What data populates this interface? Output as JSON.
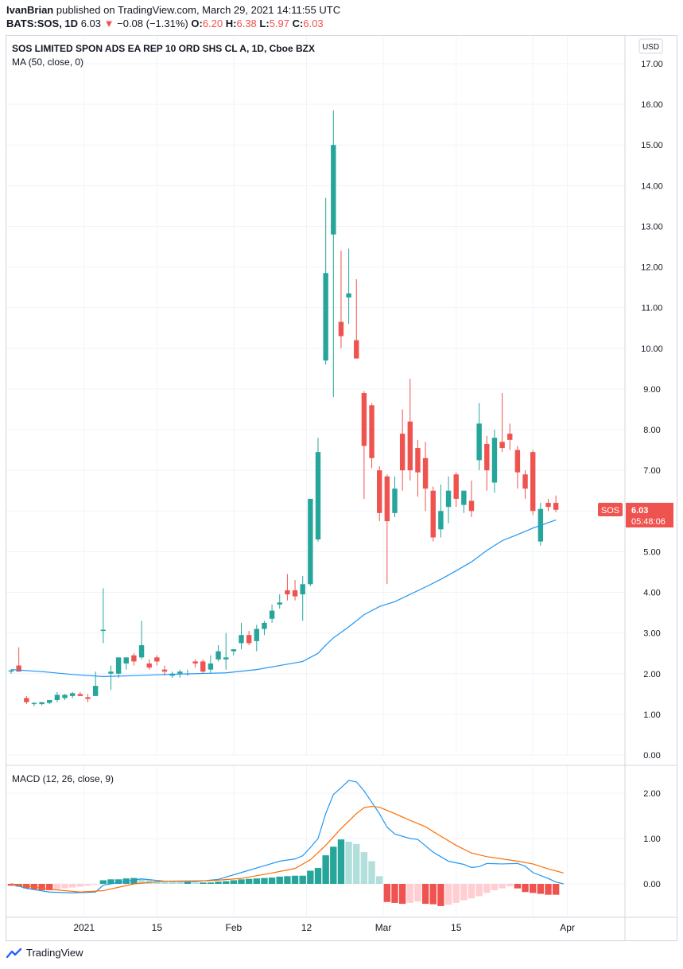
{
  "header": {
    "publisher_line_user": "IvanBrian",
    "publisher_line_rest": " published on TradingView.com, March 29, 2021 14:11:55 UTC",
    "symbol": "BATS:SOS, 1D",
    "last": "6.03",
    "change_arrow": "▼",
    "change": "−0.08 (−1.31%)",
    "o_label": "O:",
    "o_val": "6.20",
    "h_label": "H:",
    "h_val": "6.38",
    "l_label": "L:",
    "l_val": "5.97",
    "c_label": "C:",
    "c_val": "6.03"
  },
  "legend": {
    "title": "SOS LIMITED SPON ADS EA REP 10 ORD SHS CL A, 1D, Cboe BZX",
    "ma": "MA (50, close, 0)",
    "macd": "MACD (12, 26, close, 9)"
  },
  "currency": "USD",
  "price_tag": {
    "symbol": "SOS",
    "price": "6.03",
    "countdown": "05:48:06"
  },
  "footer": {
    "brand": "TradingView"
  },
  "colors": {
    "up": "#26a69a",
    "down": "#ef5350",
    "ma": "#2196f3",
    "macd": "#2196f3",
    "signal": "#ff6d00",
    "hist_up_strong": "#26a69a",
    "hist_up_weak": "#b2dfdb",
    "hist_down_strong": "#ef5350",
    "hist_down_weak": "#ffcdd2"
  },
  "chart_data": [
    {
      "type": "candlestick",
      "title": "SOS LIMITED SPON ADS EA REP 10 ORD SHS CL A, 1D, Cboe BZX",
      "ylim": [
        0,
        17
      ],
      "yticks": [
        "0.00",
        "1.00",
        "2.00",
        "3.00",
        "4.00",
        "5.00",
        "6.00",
        "7.00",
        "8.00",
        "9.00",
        "10.00",
        "11.00",
        "12.00",
        "13.00",
        "14.00",
        "15.00",
        "16.00",
        "17.00"
      ],
      "xticks": [
        "2021",
        "15",
        "Feb",
        "12",
        "Mar",
        "15",
        "Apr"
      ],
      "candles": [
        [
          2.05,
          2.1,
          2.0,
          2.08
        ],
        [
          2.2,
          2.65,
          2.05,
          2.05
        ],
        [
          1.4,
          1.45,
          1.25,
          1.3
        ],
        [
          1.25,
          1.3,
          1.2,
          1.28
        ],
        [
          1.25,
          1.3,
          1.22,
          1.3
        ],
        [
          1.28,
          1.35,
          1.25,
          1.35
        ],
        [
          1.35,
          1.55,
          1.3,
          1.48
        ],
        [
          1.4,
          1.5,
          1.35,
          1.48
        ],
        [
          1.45,
          1.55,
          1.4,
          1.52
        ],
        [
          1.5,
          1.55,
          1.45,
          1.45
        ],
        [
          1.42,
          1.5,
          1.3,
          1.38
        ],
        [
          1.45,
          2.05,
          1.45,
          1.7
        ],
        [
          3.05,
          4.1,
          2.75,
          3.08
        ],
        [
          2.0,
          2.2,
          1.6,
          2.05
        ],
        [
          2.0,
          2.35,
          1.9,
          2.4
        ],
        [
          2.25,
          2.4,
          2.1,
          2.4
        ],
        [
          2.45,
          2.5,
          2.2,
          2.3
        ],
        [
          2.4,
          3.3,
          2.35,
          2.7
        ],
        [
          2.25,
          2.35,
          2.1,
          2.15
        ],
        [
          2.4,
          2.45,
          2.2,
          2.3
        ],
        [
          2.1,
          2.2,
          1.95,
          2.05
        ],
        [
          1.95,
          2.05,
          1.9,
          2.0
        ],
        [
          2.0,
          2.1,
          1.9,
          2.05
        ],
        [
          2.0,
          2.1,
          1.95,
          2.0
        ],
        [
          2.3,
          2.35,
          2.15,
          2.25
        ],
        [
          2.3,
          2.35,
          2.0,
          2.05
        ],
        [
          2.1,
          2.45,
          2.0,
          2.25
        ],
        [
          2.35,
          2.7,
          2.3,
          2.55
        ],
        [
          2.35,
          3.0,
          2.1,
          2.4
        ],
        [
          2.55,
          2.6,
          2.45,
          2.6
        ],
        [
          2.75,
          3.25,
          2.6,
          2.95
        ],
        [
          2.95,
          3.05,
          2.7,
          2.75
        ],
        [
          2.8,
          3.2,
          2.55,
          3.1
        ],
        [
          3.1,
          3.3,
          2.95,
          3.25
        ],
        [
          3.35,
          3.7,
          3.25,
          3.55
        ],
        [
          3.7,
          3.95,
          3.6,
          3.75
        ],
        [
          4.05,
          4.45,
          3.8,
          3.95
        ],
        [
          4.05,
          4.3,
          3.8,
          3.9
        ],
        [
          3.95,
          4.4,
          3.3,
          4.2
        ],
        [
          4.2,
          6.3,
          4.15,
          6.3
        ],
        [
          5.3,
          7.8,
          5.25,
          7.45
        ],
        [
          9.7,
          13.7,
          9.6,
          11.85
        ],
        [
          12.8,
          15.85,
          8.8,
          15.0
        ],
        [
          10.65,
          12.4,
          10.0,
          10.3
        ],
        [
          11.25,
          12.45,
          10.6,
          11.35
        ],
        [
          10.2,
          11.7,
          9.75,
          9.75
        ],
        [
          8.9,
          8.95,
          6.3,
          7.6
        ],
        [
          8.6,
          8.65,
          7.05,
          7.3
        ],
        [
          7.0,
          7.1,
          5.75,
          5.95
        ],
        [
          6.85,
          6.9,
          4.2,
          5.75
        ],
        [
          5.95,
          6.85,
          5.85,
          6.55
        ],
        [
          7.9,
          8.5,
          6.5,
          7.0
        ],
        [
          8.2,
          9.25,
          6.75,
          7.0
        ],
        [
          7.55,
          7.75,
          6.35,
          6.95
        ],
        [
          7.3,
          7.7,
          6.0,
          6.55
        ],
        [
          6.5,
          6.6,
          5.25,
          5.35
        ],
        [
          5.55,
          6.65,
          5.35,
          6.0
        ],
        [
          6.1,
          6.85,
          5.7,
          6.5
        ],
        [
          6.9,
          6.95,
          6.1,
          6.3
        ],
        [
          6.15,
          6.4,
          5.95,
          6.5
        ],
        [
          6.25,
          6.75,
          5.85,
          6.0
        ],
        [
          7.25,
          8.65,
          7.0,
          8.15
        ],
        [
          7.65,
          7.85,
          6.5,
          7.0
        ],
        [
          6.7,
          8.0,
          6.45,
          7.8
        ],
        [
          7.7,
          8.9,
          7.45,
          7.55
        ],
        [
          7.9,
          8.15,
          7.5,
          7.75
        ],
        [
          7.5,
          7.6,
          6.55,
          6.95
        ],
        [
          6.9,
          7.0,
          6.3,
          6.55
        ],
        [
          7.45,
          7.5,
          5.9,
          6.0
        ],
        [
          5.25,
          6.2,
          5.15,
          6.05
        ],
        [
          6.2,
          6.3,
          6.0,
          6.1
        ],
        [
          6.2,
          6.38,
          5.97,
          6.03
        ]
      ],
      "ma50": [
        [
          0,
          2.1
        ],
        [
          4,
          2.05
        ],
        [
          8,
          1.98
        ],
        [
          12,
          1.93
        ],
        [
          16,
          1.95
        ],
        [
          20,
          1.98
        ],
        [
          24,
          2.0
        ],
        [
          28,
          2.02
        ],
        [
          32,
          2.1
        ],
        [
          35,
          2.2
        ],
        [
          38,
          2.3
        ],
        [
          39,
          2.4
        ],
        [
          40,
          2.5
        ],
        [
          41,
          2.7
        ],
        [
          42,
          2.88
        ],
        [
          44,
          3.15
        ],
        [
          46,
          3.45
        ],
        [
          48,
          3.65
        ],
        [
          50,
          3.77
        ],
        [
          52,
          3.95
        ],
        [
          54,
          4.13
        ],
        [
          56,
          4.32
        ],
        [
          58,
          4.53
        ],
        [
          60,
          4.75
        ],
        [
          62,
          5.03
        ],
        [
          64,
          5.27
        ],
        [
          66,
          5.42
        ],
        [
          68,
          5.58
        ],
        [
          71,
          5.78
        ]
      ]
    },
    {
      "type": "macd",
      "title": "MACD (12, 26, close, 9)",
      "ylim": [
        -0.6,
        2.4
      ],
      "yticks": [
        "0.00",
        "1.00",
        "2.00"
      ],
      "macd": [
        [
          0,
          0
        ],
        [
          2,
          -0.1
        ],
        [
          5,
          -0.18
        ],
        [
          8,
          -0.2
        ],
        [
          11,
          -0.18
        ],
        [
          12,
          -0.03
        ],
        [
          14,
          0.03
        ],
        [
          17,
          0.11
        ],
        [
          20,
          0.06
        ],
        [
          24,
          0.05
        ],
        [
          27,
          0.1
        ],
        [
          30,
          0.25
        ],
        [
          33,
          0.4
        ],
        [
          35,
          0.5
        ],
        [
          37,
          0.55
        ],
        [
          38,
          0.62
        ],
        [
          39,
          0.8
        ],
        [
          40,
          1.0
        ],
        [
          41,
          1.55
        ],
        [
          42,
          1.97
        ],
        [
          43,
          2.12
        ],
        [
          44,
          2.28
        ],
        [
          45,
          2.25
        ],
        [
          46,
          2.05
        ],
        [
          47,
          1.8
        ],
        [
          48,
          1.55
        ],
        [
          49,
          1.25
        ],
        [
          50,
          1.1
        ],
        [
          52,
          1.0
        ],
        [
          53,
          0.98
        ],
        [
          55,
          0.7
        ],
        [
          56,
          0.6
        ],
        [
          57,
          0.5
        ],
        [
          59,
          0.43
        ],
        [
          60,
          0.36
        ],
        [
          61,
          0.38
        ],
        [
          62,
          0.45
        ],
        [
          64,
          0.44
        ],
        [
          66,
          0.45
        ],
        [
          67,
          0.39
        ],
        [
          68,
          0.25
        ],
        [
          70,
          0.12
        ],
        [
          71,
          0.04
        ],
        [
          72,
          0.0
        ]
      ],
      "signal": [
        [
          0,
          0
        ],
        [
          5,
          -0.12
        ],
        [
          9,
          -0.18
        ],
        [
          12,
          -0.15
        ],
        [
          16,
          0.0
        ],
        [
          20,
          0.06
        ],
        [
          26,
          0.07
        ],
        [
          30,
          0.12
        ],
        [
          34,
          0.24
        ],
        [
          37,
          0.34
        ],
        [
          39,
          0.53
        ],
        [
          41,
          0.85
        ],
        [
          43,
          1.22
        ],
        [
          45,
          1.55
        ],
        [
          46,
          1.68
        ],
        [
          47,
          1.71
        ],
        [
          48,
          1.69
        ],
        [
          50,
          1.55
        ],
        [
          52,
          1.4
        ],
        [
          54,
          1.26
        ],
        [
          56,
          1.05
        ],
        [
          58,
          0.85
        ],
        [
          60,
          0.68
        ],
        [
          62,
          0.6
        ],
        [
          64,
          0.55
        ],
        [
          66,
          0.5
        ],
        [
          68,
          0.44
        ],
        [
          70,
          0.33
        ],
        [
          72,
          0.24
        ]
      ],
      "histogram": [
        -0.04,
        -0.06,
        -0.1,
        -0.12,
        -0.14,
        -0.14,
        -0.12,
        -0.1,
        -0.08,
        -0.06,
        -0.04,
        -0.02,
        0.08,
        0.1,
        0.1,
        0.12,
        0.13,
        0.12,
        0.1,
        0.08,
        0.06,
        0.05,
        0.04,
        0.04,
        0.03,
        0.03,
        0.03,
        0.05,
        0.06,
        0.08,
        0.1,
        0.11,
        0.12,
        0.13,
        0.14,
        0.16,
        0.17,
        0.18,
        0.18,
        0.29,
        0.35,
        0.63,
        0.82,
        0.98,
        0.93,
        0.88,
        0.7,
        0.5,
        0.17,
        -0.4,
        -0.42,
        -0.44,
        -0.42,
        -0.39,
        -0.44,
        -0.45,
        -0.49,
        -0.46,
        -0.42,
        -0.36,
        -0.32,
        -0.27,
        -0.2,
        -0.14,
        -0.1,
        -0.05,
        -0.1,
        -0.18,
        -0.2,
        -0.22,
        -0.24,
        -0.24
      ]
    }
  ]
}
